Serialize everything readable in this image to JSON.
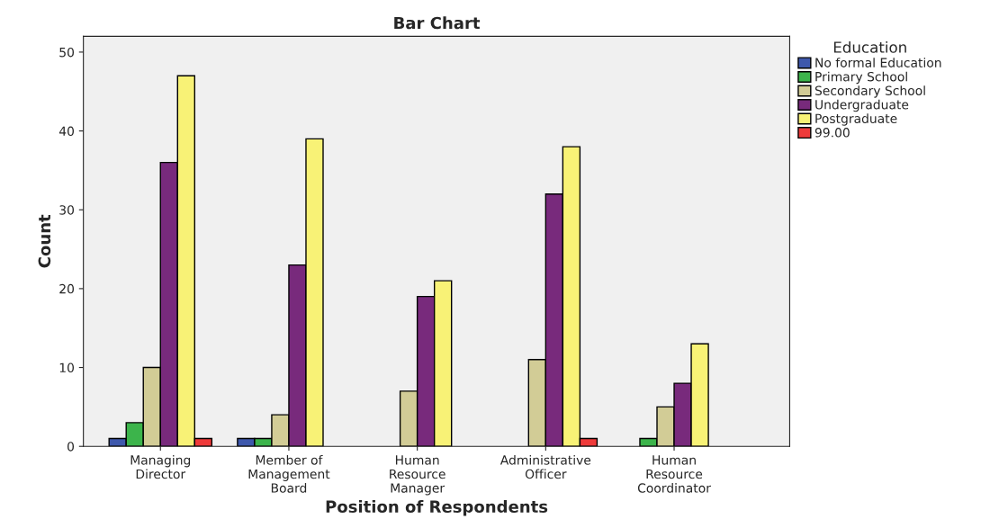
{
  "chart_data": {
    "type": "bar",
    "title": "Bar Chart",
    "xlabel": "Position of Respondents",
    "ylabel": "Count",
    "legend_title": "Education",
    "categories": [
      "Managing\nDirector",
      "Member of\nManagement\nBoard",
      "Human\nResource\nManager",
      "Administrative\nOfficer",
      "Human\nResource\nCoordinator"
    ],
    "series": [
      {
        "name": "No formal Education",
        "color": "#3e58ac",
        "values": [
          1,
          1,
          null,
          null,
          null
        ]
      },
      {
        "name": "Primary School",
        "color": "#3cb44b",
        "values": [
          3,
          1,
          null,
          null,
          1
        ]
      },
      {
        "name": "Secondary School",
        "color": "#d2cc96",
        "values": [
          10,
          4,
          7,
          11,
          5
        ]
      },
      {
        "name": "Undergraduate",
        "color": "#782a7c",
        "values": [
          36,
          23,
          19,
          32,
          8
        ]
      },
      {
        "name": "Postgraduate",
        "color": "#f8f276",
        "values": [
          47,
          39,
          21,
          38,
          13
        ]
      },
      {
        "name": "99.00",
        "color": "#ee3a3a",
        "values": [
          1,
          null,
          null,
          1,
          null
        ]
      }
    ],
    "ylim": [
      0,
      52
    ],
    "yticks": [
      0,
      10,
      20,
      30,
      40,
      50
    ],
    "grid": false,
    "legend": "right"
  }
}
